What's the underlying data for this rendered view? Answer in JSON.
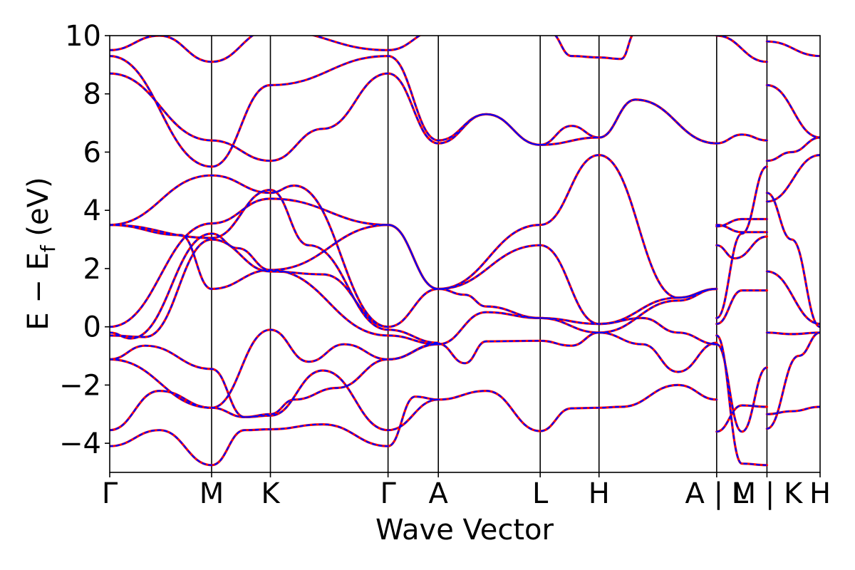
{
  "chart_data": {
    "type": "line",
    "title": "",
    "xlabel": "Wave Vector",
    "ylabel": "E − E",
    "ylabel_subscript": "f",
    "ylabel_unit": " (eV)",
    "ylim": [
      -5,
      10
    ],
    "yticks": [
      {
        "value": -4,
        "label": "−4"
      },
      {
        "value": -2,
        "label": "−2"
      },
      {
        "value": 0,
        "label": "0"
      },
      {
        "value": 2,
        "label": "2"
      },
      {
        "value": 4,
        "label": "4"
      },
      {
        "value": 6,
        "label": "6"
      },
      {
        "value": 8,
        "label": "8"
      },
      {
        "value": 10,
        "label": "10"
      }
    ],
    "xlim": [
      0,
      1
    ],
    "kpoints": [
      {
        "label": "Γ",
        "pos": 0.0
      },
      {
        "label": "M",
        "pos": 0.1434
      },
      {
        "label": "K",
        "pos": 0.2262
      },
      {
        "label": "Γ",
        "pos": 0.3918
      },
      {
        "label": "A",
        "pos": 0.4626
      },
      {
        "label": "L",
        "pos": 0.606
      },
      {
        "label": "H",
        "pos": 0.6888
      },
      {
        "label": "A | L",
        "pos": 0.8544
      },
      {
        "label": "M | K",
        "pos": 0.9252
      },
      {
        "label": "H",
        "pos": 1.0
      }
    ],
    "grid": false,
    "legend": "none",
    "colors": {
      "series_a": "#ff0000",
      "series_b": "#0000ff",
      "kline": "#000000"
    },
    "series": [
      {
        "style": "solid",
        "color": "#ff0000",
        "bands": [
          [
            [
              0,
              -4.1
            ],
            [
              0.07,
              -3.55
            ],
            [
              0.1434,
              -4.75
            ],
            [
              0.19,
              -3.55
            ],
            [
              0.2262,
              -3.52
            ],
            [
              0.3,
              -3.35
            ],
            [
              0.3918,
              -4.1
            ],
            [
              0.43,
              -2.4
            ],
            [
              0.4626,
              -2.5
            ],
            [
              0.53,
              -2.2
            ],
            [
              0.606,
              -3.58
            ],
            [
              0.65,
              -2.8
            ],
            [
              0.6888,
              -2.78
            ],
            [
              0.72,
              -2.75
            ],
            [
              0.8,
              -2.0
            ],
            [
              0.8544,
              -2.5
            ]
          ],
          [
            [
              0,
              -3.55
            ],
            [
              0.07,
              -2.2
            ],
            [
              0.1434,
              -2.78
            ],
            [
              0.19,
              -3.1
            ],
            [
              0.2262,
              -3.05
            ],
            [
              0.3,
              -1.5
            ],
            [
              0.3918,
              -3.55
            ],
            [
              0.4626,
              -2.5
            ]
          ],
          [
            [
              0,
              -1.12
            ],
            [
              0.05,
              -0.65
            ],
            [
              0.1434,
              -1.45
            ],
            [
              0.19,
              -3.1
            ],
            [
              0.2262,
              -3.0
            ],
            [
              0.26,
              -2.5
            ],
            [
              0.32,
              -2.1
            ],
            [
              0.3918,
              -1.12
            ],
            [
              0.4626,
              -0.58
            ],
            [
              0.5,
              -1.25
            ],
            [
              0.53,
              -0.5
            ],
            [
              0.606,
              -0.48
            ],
            [
              0.65,
              -0.65
            ],
            [
              0.6888,
              -0.2
            ],
            [
              0.75,
              -0.6
            ],
            [
              0.8,
              -1.55
            ],
            [
              0.8544,
              -0.55
            ]
          ],
          [
            [
              0,
              -1.12
            ],
            [
              0.1434,
              -2.78
            ],
            [
              0.2262,
              -0.1
            ],
            [
              0.28,
              -1.2
            ],
            [
              0.33,
              -0.6
            ],
            [
              0.3918,
              -1.12
            ],
            [
              0.4626,
              -0.6
            ],
            [
              0.53,
              0.5
            ],
            [
              0.606,
              0.3
            ],
            [
              0.6888,
              0.1
            ],
            [
              0.75,
              0.3
            ],
            [
              0.8,
              -0.2
            ],
            [
              0.8544,
              -0.6
            ]
          ],
          [
            [
              0,
              -0.3
            ],
            [
              0.05,
              -0.35
            ],
            [
              0.1434,
              3.0
            ],
            [
              0.2262,
              1.9
            ],
            [
              0.3,
              1.8
            ],
            [
              0.3918,
              0.0
            ],
            [
              0.4626,
              1.3
            ],
            [
              0.5,
              1.1
            ],
            [
              0.53,
              0.7
            ],
            [
              0.606,
              0.3
            ],
            [
              0.6888,
              -0.2
            ],
            [
              0.8,
              0.9
            ],
            [
              0.8544,
              1.3
            ]
          ],
          [
            [
              0,
              -0.2
            ],
            [
              0.03,
              -0.4
            ],
            [
              0.1434,
              3.2
            ],
            [
              0.18,
              2.7
            ],
            [
              0.2262,
              1.95
            ],
            [
              0.3918,
              3.5
            ],
            [
              0.4626,
              1.3
            ],
            [
              0.606,
              2.8
            ],
            [
              0.6888,
              0.1
            ],
            [
              0.8,
              1.0
            ],
            [
              0.8544,
              1.3
            ]
          ],
          [
            [
              0,
              0.0
            ],
            [
              0.1434,
              3.55
            ],
            [
              0.2262,
              4.4
            ],
            [
              0.3918,
              3.5
            ],
            [
              0.4626,
              1.3
            ],
            [
              0.606,
              3.5
            ],
            [
              0.6888,
              5.9
            ],
            [
              0.8,
              1.0
            ],
            [
              0.8544,
              1.3
            ]
          ],
          [
            [
              0,
              3.5
            ],
            [
              0.1,
              3.15
            ],
            [
              0.1434,
              1.3
            ],
            [
              0.2262,
              1.95
            ],
            [
              0.3918,
              -0.3
            ],
            [
              0.4626,
              -0.6
            ]
          ],
          [
            [
              0,
              3.5
            ],
            [
              0.1434,
              3.05
            ],
            [
              0.2262,
              4.7
            ],
            [
              0.28,
              2.8
            ],
            [
              0.3918,
              -0.1
            ],
            [
              0.4626,
              -0.55
            ]
          ],
          [
            [
              0,
              3.5
            ],
            [
              0.1434,
              5.2
            ],
            [
              0.2262,
              4.6
            ],
            [
              0.26,
              4.85
            ],
            [
              0.3918,
              0.0
            ]
          ],
          [
            [
              0,
              8.7
            ],
            [
              0.1434,
              6.4
            ],
            [
              0.2262,
              5.7
            ],
            [
              0.3,
              6.8
            ],
            [
              0.3918,
              8.7
            ],
            [
              0.4626,
              6.3
            ],
            [
              0.53,
              7.3
            ],
            [
              0.606,
              6.25
            ],
            [
              0.6888,
              6.5
            ],
            [
              0.74,
              7.8
            ],
            [
              0.8544,
              6.3
            ]
          ],
          [
            [
              0,
              9.3
            ],
            [
              0.1434,
              5.5
            ],
            [
              0.2262,
              8.3
            ],
            [
              0.3918,
              9.3
            ],
            [
              0.4626,
              6.4
            ],
            [
              0.53,
              7.3
            ],
            [
              0.606,
              6.25
            ],
            [
              0.65,
              6.9
            ],
            [
              0.6888,
              6.5
            ],
            [
              0.74,
              7.8
            ],
            [
              0.8544,
              6.3
            ]
          ],
          [
            [
              0,
              9.5
            ],
            [
              0.07,
              10.0
            ],
            [
              0.1434,
              9.1
            ],
            [
              0.2262,
              10.2
            ],
            [
              0.3918,
              9.5
            ],
            [
              0.4626,
              10.2
            ]
          ],
          [
            [
              0.62,
              10.1
            ],
            [
              0.65,
              9.3
            ],
            [
              0.6888,
              9.25
            ],
            [
              0.72,
              9.2
            ],
            [
              0.74,
              10.1
            ]
          ],
          [
            [
              0.8544,
              6.3
            ],
            [
              0.89,
              6.6
            ],
            [
              0.9252,
              6.4
            ]
          ],
          [
            [
              0.8544,
              3.45
            ],
            [
              0.89,
              3.7
            ],
            [
              0.9252,
              3.7
            ]
          ],
          [
            [
              0.8544,
              3.5
            ],
            [
              0.89,
              3.25
            ],
            [
              0.9252,
              3.25
            ]
          ],
          [
            [
              0.8544,
              2.8
            ],
            [
              0.88,
              2.35
            ],
            [
              0.9252,
              3.1
            ]
          ],
          [
            [
              0.8544,
              0.3
            ],
            [
              0.89,
              3.2
            ],
            [
              0.9252,
              5.5
            ]
          ],
          [
            [
              0.8544,
              0.1
            ],
            [
              0.89,
              1.25
            ],
            [
              0.9252,
              1.25
            ]
          ],
          [
            [
              0.8544,
              -0.6
            ],
            [
              0.89,
              -3.6
            ],
            [
              0.9252,
              -1.4
            ]
          ],
          [
            [
              0.8544,
              -3.6
            ],
            [
              0.89,
              -2.7
            ],
            [
              0.9252,
              -2.75
            ]
          ],
          [
            [
              0.8544,
              -0.3
            ],
            [
              0.89,
              -4.7
            ],
            [
              0.9252,
              -4.75
            ]
          ],
          [
            [
              0.8544,
              10.0
            ],
            [
              0.9252,
              9.1
            ]
          ],
          [
            [
              0.9252,
              9.8
            ],
            [
              1.0,
              9.3
            ]
          ],
          [
            [
              0.9252,
              8.3
            ],
            [
              1.0,
              6.5
            ]
          ],
          [
            [
              0.9252,
              5.7
            ],
            [
              0.96,
              6.0
            ],
            [
              1.0,
              6.5
            ]
          ],
          [
            [
              0.9252,
              4.3
            ],
            [
              1.0,
              5.9
            ]
          ],
          [
            [
              0.9252,
              4.6
            ],
            [
              0.96,
              3.0
            ],
            [
              1.0,
              0.0
            ]
          ],
          [
            [
              0.9252,
              1.9
            ],
            [
              1.0,
              0.1
            ]
          ],
          [
            [
              0.9252,
              -0.2
            ],
            [
              0.96,
              -0.25
            ],
            [
              1.0,
              -0.2
            ]
          ],
          [
            [
              0.9252,
              -3.0
            ],
            [
              0.96,
              -2.9
            ],
            [
              1.0,
              -2.75
            ]
          ],
          [
            [
              0.9252,
              -3.5
            ],
            [
              0.97,
              -1.0
            ],
            [
              1.0,
              -0.2
            ]
          ]
        ]
      },
      {
        "style": "dashed",
        "color": "#0000ff",
        "bands": "same"
      }
    ]
  }
}
